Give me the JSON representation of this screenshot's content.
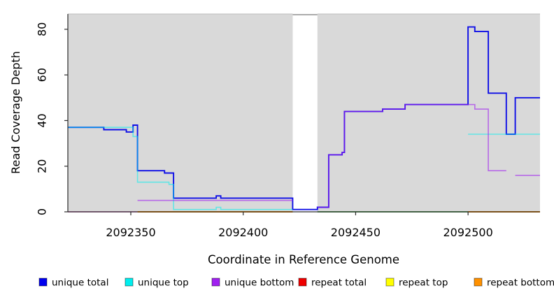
{
  "figure": {
    "ylabel": "Read Coverage Depth",
    "xlabel": "Coordinate in Reference Genome"
  },
  "chart_data": {
    "type": "line",
    "subtype": "step-coverage",
    "title": "",
    "xlabel": "Coordinate in Reference Genome",
    "ylabel": "Read Coverage Depth",
    "x_range": [
      2092322,
      2092532
    ],
    "y_range": [
      0,
      86.7
    ],
    "x_ticks": [
      2092350,
      2092400,
      2092450,
      2092500
    ],
    "y_ticks": [
      0,
      20,
      40,
      60,
      80
    ],
    "grid": false,
    "plot_background": "#d9d9d9",
    "masked_region": {
      "from": 2092422,
      "to": 2092433,
      "color": "#ffffff"
    },
    "series": [
      {
        "name": "repeat total",
        "color": "#ee0000",
        "opacity": 1,
        "width": 1.5,
        "render": false,
        "steps": [
          [
            2092322,
            0
          ]
        ]
      },
      {
        "name": "repeat top",
        "color": "#ffff00",
        "opacity": 1,
        "width": 1.5,
        "render": false,
        "steps": [
          [
            2092322,
            0
          ]
        ]
      },
      {
        "name": "repeat bottom",
        "color": "#ff9100",
        "opacity": 1,
        "width": 1.5,
        "render": false,
        "steps": [
          [
            2092322,
            0
          ]
        ]
      },
      {
        "name": "unique total",
        "color": "#0f0fe6",
        "opacity": 1,
        "width": 1.9,
        "render": true,
        "steps": [
          [
            2092322,
            37
          ],
          [
            2092338,
            36
          ],
          [
            2092348,
            35
          ],
          [
            2092351,
            38
          ],
          [
            2092353,
            18
          ],
          [
            2092365,
            17
          ],
          [
            2092369,
            6
          ],
          [
            2092388,
            7
          ],
          [
            2092390,
            6
          ],
          [
            2092422,
            1
          ],
          [
            2092433,
            2
          ],
          [
            2092438,
            25
          ],
          [
            2092444,
            26
          ],
          [
            2092445,
            44
          ],
          [
            2092462,
            45
          ],
          [
            2092472,
            47
          ],
          [
            2092500,
            81
          ],
          [
            2092503,
            79
          ],
          [
            2092509,
            52
          ],
          [
            2092517,
            34
          ],
          [
            2092521,
            50
          ]
        ]
      },
      {
        "name": "unique top",
        "color": "#00eeee",
        "opacity": 0.55,
        "width": 1.6,
        "render": true,
        "steps": [
          [
            2092322,
            37
          ],
          [
            2092351,
            33
          ],
          [
            2092353,
            13
          ],
          [
            2092367,
            12
          ],
          [
            2092369,
            1
          ],
          [
            2092388,
            2
          ],
          [
            2092390,
            1
          ],
          [
            2092422,
            null
          ],
          [
            2092500,
            34
          ]
        ]
      },
      {
        "name": "unique bottom",
        "color": "#a020f0",
        "opacity": 0.6,
        "width": 1.6,
        "render": true,
        "steps": [
          [
            2092353,
            5
          ],
          [
            2092422,
            null
          ],
          [
            2092433,
            2
          ],
          [
            2092438,
            25
          ],
          [
            2092444,
            26
          ],
          [
            2092445,
            44
          ],
          [
            2092462,
            45
          ],
          [
            2092472,
            47
          ],
          [
            2092500,
            47
          ],
          [
            2092503,
            45
          ],
          [
            2092509,
            18
          ],
          [
            2092517,
            null
          ],
          [
            2092521,
            16
          ]
        ]
      }
    ],
    "zero_line_segments": [
      {
        "from": 2092322,
        "to": 2092353,
        "color": "#e060c8",
        "width": 1.5,
        "note": "unique bottom over repeat lines at depth 0"
      },
      {
        "from": 2092353,
        "to": 2092422,
        "color": "#ff9100",
        "width": 2,
        "note": "repeat bottom at depth 0"
      },
      {
        "from": 2092433,
        "to": 2092500,
        "color": "#6fbf73",
        "width": 2,
        "note": "unique top over repeat top at depth 0"
      },
      {
        "from": 2092500,
        "to": 2092532,
        "color": "#ff9100",
        "width": 2,
        "note": "repeat bottom at depth 0"
      }
    ],
    "legend": {
      "position": "bottom",
      "items": [
        {
          "label": "unique total",
          "color": "#0000ee"
        },
        {
          "label": "unique top",
          "color": "#00eeee"
        },
        {
          "label": "unique bottom",
          "color": "#a020f0"
        },
        {
          "label": "repeat total",
          "color": "#ee0000"
        },
        {
          "label": "repeat top",
          "color": "#ffff00"
        },
        {
          "label": "repeat bottom",
          "color": "#ff9100"
        }
      ]
    }
  }
}
